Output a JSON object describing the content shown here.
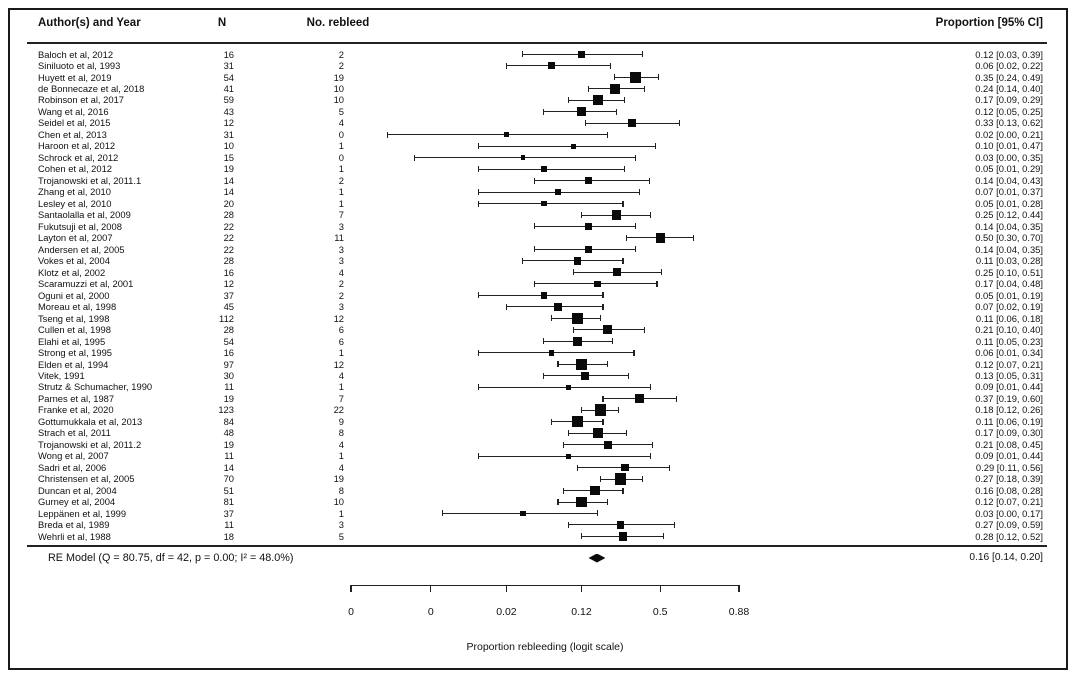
{
  "figure": {
    "columns": {
      "author": "Author(s) and Year",
      "n": "N",
      "rebleed": "No. rebleed",
      "proportion": "Proportion [95% CI]"
    }
  },
  "chart_data": {
    "type": "forest",
    "title": "",
    "xlabel": "Proportion rebleeding (logit scale)",
    "x_scale": "logit",
    "x_ticks": [
      {
        "p": 0.0004,
        "label": "0"
      },
      {
        "p": 0.003,
        "label": "0"
      },
      {
        "p": 0.02,
        "label": "0.02"
      },
      {
        "p": 0.12,
        "label": "0.12"
      },
      {
        "p": 0.5,
        "label": "0.5"
      },
      {
        "p": 0.88,
        "label": "0.88"
      }
    ],
    "studies": [
      {
        "author": "Baloch et al, 2012",
        "n": 16,
        "events": 2,
        "p": 0.12,
        "lo": 0.03,
        "hi": 0.39
      },
      {
        "author": "Siniluoto et al, 1993",
        "n": 31,
        "events": 2,
        "p": 0.06,
        "lo": 0.02,
        "hi": 0.22
      },
      {
        "author": "Huyett et al, 2019",
        "n": 54,
        "events": 19,
        "p": 0.35,
        "lo": 0.24,
        "hi": 0.49
      },
      {
        "author": "de Bonnecaze et al, 2018",
        "n": 41,
        "events": 10,
        "p": 0.24,
        "lo": 0.14,
        "hi": 0.4
      },
      {
        "author": "Robinson et al, 2017",
        "n": 59,
        "events": 10,
        "p": 0.17,
        "lo": 0.09,
        "hi": 0.29
      },
      {
        "author": "Wang et al, 2016",
        "n": 43,
        "events": 5,
        "p": 0.12,
        "lo": 0.05,
        "hi": 0.25
      },
      {
        "author": "Seidel et al, 2015",
        "n": 12,
        "events": 4,
        "p": 0.33,
        "lo": 0.13,
        "hi": 0.62
      },
      {
        "author": "Chen et al, 2013",
        "n": 31,
        "events": 0,
        "p": 0.02,
        "lo": 0.001,
        "hi": 0.21
      },
      {
        "author": "Haroon et al, 2012",
        "n": 10,
        "events": 1,
        "p": 0.1,
        "lo": 0.01,
        "hi": 0.47
      },
      {
        "author": "Schrock et al, 2012",
        "n": 15,
        "events": 0,
        "p": 0.03,
        "lo": 0.002,
        "hi": 0.35
      },
      {
        "author": "Cohen et al, 2012",
        "n": 19,
        "events": 1,
        "p": 0.05,
        "lo": 0.01,
        "hi": 0.29
      },
      {
        "author": "Trojanowski et al, 2011.1",
        "n": 14,
        "events": 2,
        "p": 0.14,
        "lo": 0.04,
        "hi": 0.43
      },
      {
        "author": "Zhang et al, 2010",
        "n": 14,
        "events": 1,
        "p": 0.07,
        "lo": 0.01,
        "hi": 0.37
      },
      {
        "author": "Lesley et al, 2010",
        "n": 20,
        "events": 1,
        "p": 0.05,
        "lo": 0.01,
        "hi": 0.28
      },
      {
        "author": "Santaolalla et al, 2009",
        "n": 28,
        "events": 7,
        "p": 0.25,
        "lo": 0.12,
        "hi": 0.44
      },
      {
        "author": "Fukutsuji et al, 2008",
        "n": 22,
        "events": 3,
        "p": 0.14,
        "lo": 0.04,
        "hi": 0.35
      },
      {
        "author": "Layton et al, 2007",
        "n": 22,
        "events": 11,
        "p": 0.5,
        "lo": 0.3,
        "hi": 0.7
      },
      {
        "author": "Andersen et al, 2005",
        "n": 22,
        "events": 3,
        "p": 0.14,
        "lo": 0.04,
        "hi": 0.35
      },
      {
        "author": "Vokes et al, 2004",
        "n": 28,
        "events": 3,
        "p": 0.11,
        "lo": 0.03,
        "hi": 0.28
      },
      {
        "author": "Klotz et al, 2002",
        "n": 16,
        "events": 4,
        "p": 0.25,
        "lo": 0.1,
        "hi": 0.51
      },
      {
        "author": "Scaramuzzi et al, 2001",
        "n": 12,
        "events": 2,
        "p": 0.17,
        "lo": 0.04,
        "hi": 0.48
      },
      {
        "author": "Oguni et al, 2000",
        "n": 37,
        "events": 2,
        "p": 0.05,
        "lo": 0.01,
        "hi": 0.19
      },
      {
        "author": "Moreau et al, 1998",
        "n": 45,
        "events": 3,
        "p": 0.07,
        "lo": 0.02,
        "hi": 0.19
      },
      {
        "author": "Tseng et al, 1998",
        "n": 112,
        "events": 12,
        "p": 0.11,
        "lo": 0.06,
        "hi": 0.18
      },
      {
        "author": "Cullen et al, 1998",
        "n": 28,
        "events": 6,
        "p": 0.21,
        "lo": 0.1,
        "hi": 0.4
      },
      {
        "author": "Elahi et al, 1995",
        "n": 54,
        "events": 6,
        "p": 0.11,
        "lo": 0.05,
        "hi": 0.23
      },
      {
        "author": "Strong et al, 1995",
        "n": 16,
        "events": 1,
        "p": 0.06,
        "lo": 0.01,
        "hi": 0.34
      },
      {
        "author": "Elden et al, 1994",
        "n": 97,
        "events": 12,
        "p": 0.12,
        "lo": 0.07,
        "hi": 0.21
      },
      {
        "author": "Vitek, 1991",
        "n": 30,
        "events": 4,
        "p": 0.13,
        "lo": 0.05,
        "hi": 0.31
      },
      {
        "author": "Strutz & Schumacher, 1990",
        "n": 11,
        "events": 1,
        "p": 0.09,
        "lo": 0.01,
        "hi": 0.44
      },
      {
        "author": "Parnes et al, 1987",
        "n": 19,
        "events": 7,
        "p": 0.37,
        "lo": 0.19,
        "hi": 0.6
      },
      {
        "author": "Franke et al, 2020",
        "n": 123,
        "events": 22,
        "p": 0.18,
        "lo": 0.12,
        "hi": 0.26
      },
      {
        "author": "Gottumukkala et al, 2013",
        "n": 84,
        "events": 9,
        "p": 0.11,
        "lo": 0.06,
        "hi": 0.19
      },
      {
        "author": "Strach et al, 2011",
        "n": 48,
        "events": 8,
        "p": 0.17,
        "lo": 0.09,
        "hi": 0.3
      },
      {
        "author": "Trojanowski et al, 2011.2",
        "n": 19,
        "events": 4,
        "p": 0.21,
        "lo": 0.08,
        "hi": 0.45
      },
      {
        "author": "Wong et al, 2007",
        "n": 11,
        "events": 1,
        "p": 0.09,
        "lo": 0.01,
        "hi": 0.44
      },
      {
        "author": "Sadri et al, 2006",
        "n": 14,
        "events": 4,
        "p": 0.29,
        "lo": 0.11,
        "hi": 0.56
      },
      {
        "author": "Christensen et al, 2005",
        "n": 70,
        "events": 19,
        "p": 0.27,
        "lo": 0.18,
        "hi": 0.39
      },
      {
        "author": "Duncan et al, 2004",
        "n": 51,
        "events": 8,
        "p": 0.16,
        "lo": 0.08,
        "hi": 0.28
      },
      {
        "author": "Gurney et al, 2004",
        "n": 81,
        "events": 10,
        "p": 0.12,
        "lo": 0.07,
        "hi": 0.21
      },
      {
        "author": "Leppänen et al, 1999",
        "n": 37,
        "events": 1,
        "p": 0.03,
        "lo": 0.004,
        "hi": 0.17
      },
      {
        "author": "Breda et al, 1989",
        "n": 11,
        "events": 3,
        "p": 0.27,
        "lo": 0.09,
        "hi": 0.59
      },
      {
        "author": "Wehrli et al, 1988",
        "n": 18,
        "events": 5,
        "p": 0.28,
        "lo": 0.12,
        "hi": 0.52
      }
    ],
    "summary": {
      "label": "RE Model (Q = 80.75, df = 42, p = 0.00; I² = 48.0%)",
      "p": 0.16,
      "lo": 0.14,
      "hi": 0.2
    }
  }
}
